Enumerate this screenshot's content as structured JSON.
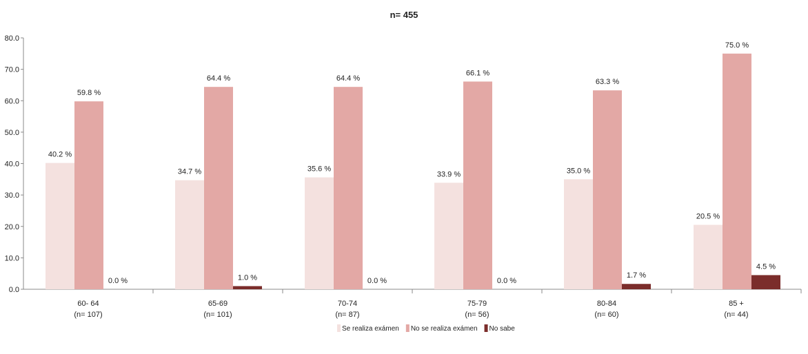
{
  "chart_data": {
    "type": "bar",
    "title": "n= 455",
    "ylim": [
      0,
      80
    ],
    "yticks": [
      "0.0",
      "10.0",
      "20.0",
      "30.0",
      "40.0",
      "50.0",
      "60.0",
      "70.0",
      "80.0"
    ],
    "grid": false,
    "legend_position": "bottom",
    "categories": [
      {
        "label": "60- 64",
        "n": "(n= 107)"
      },
      {
        "label": "65-69",
        "n": "(n= 101)"
      },
      {
        "label": "70-74",
        "n": "(n= 87)"
      },
      {
        "label": "75-79",
        "n": "(n= 56)"
      },
      {
        "label": "80-84",
        "n": "(n= 60)"
      },
      {
        "label": "85 +",
        "n": "(n= 44)"
      }
    ],
    "series": [
      {
        "name": "Se realiza exámen",
        "color": "#f4e1df",
        "values": [
          40.2,
          34.7,
          35.6,
          33.9,
          35.0,
          20.5
        ],
        "labels": [
          "40.2 %",
          "34.7 %",
          "35.6 %",
          "33.9 %",
          "35.0 %",
          "20.5 %"
        ]
      },
      {
        "name": "No se realiza exámen",
        "color": "#e3a8a5",
        "values": [
          59.8,
          64.4,
          64.4,
          66.1,
          63.3,
          75.0
        ],
        "labels": [
          "59.8 %",
          "64.4 %",
          "64.4 %",
          "66.1 %",
          "63.3 %",
          "75.0 %"
        ]
      },
      {
        "name": "No sabe",
        "color": "#7b2d2b",
        "values": [
          0.0,
          1.0,
          0.0,
          0.0,
          1.7,
          4.5
        ],
        "labels": [
          "0.0 %",
          "1.0 %",
          "0.0 %",
          "0.0 %",
          "1.7 %",
          "4.5 %"
        ]
      }
    ]
  }
}
